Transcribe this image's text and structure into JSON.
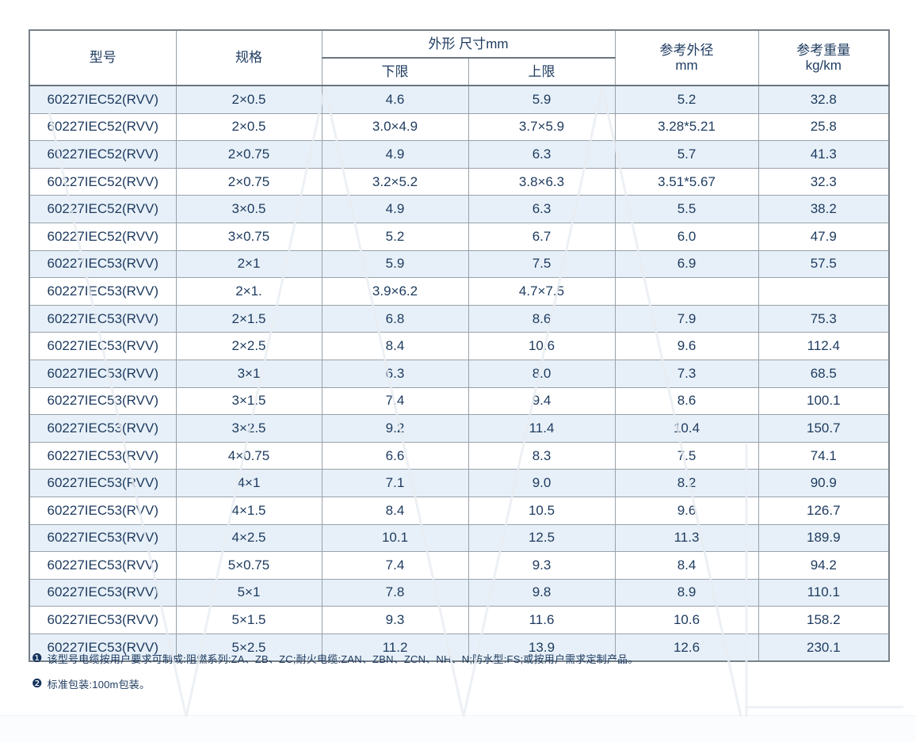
{
  "table": {
    "header": {
      "model": "型号",
      "spec": "规格",
      "dimensions": "外形 尺寸mm",
      "lower": "下限",
      "upper": "上限",
      "ref_od": [
        "参考外径",
        "mm"
      ],
      "ref_weight": [
        "参考重量",
        "kg/km"
      ]
    },
    "rows": [
      [
        "60227IEC52(RVV)",
        "2×0.5",
        "4.6",
        "5.9",
        "5.2",
        "32.8"
      ],
      [
        "60227IEC52(RVV)",
        "2×0.5",
        "3.0×4.9",
        "3.7×5.9",
        "3.28*5.21",
        "25.8"
      ],
      [
        "60227IEC52(RVV)",
        "2×0.75",
        "4.9",
        "6.3",
        "5.7",
        "41.3"
      ],
      [
        "60227IEC52(RVV)",
        "2×0.75",
        "3.2×5.2",
        "3.8×6.3",
        "3.51*5.67",
        "32.3"
      ],
      [
        "60227IEC52(RVV)",
        "3×0.5",
        "4.9",
        "6.3",
        "5.5",
        "38.2"
      ],
      [
        "60227IEC52(RVV)",
        "3×0.75",
        "5.2",
        "6.7",
        "6.0",
        "47.9"
      ],
      [
        "60227IEC53(RVV)",
        "2×1",
        "5.9",
        "7.5",
        "6.9",
        "57.5"
      ],
      [
        "60227IEC53(RVV)",
        "2×1.",
        "3.9×6.2",
        "4.7×7.5",
        "",
        ""
      ],
      [
        "60227IEC53(RVV)",
        "2×1.5",
        "6.8",
        "8.6",
        "7.9",
        "75.3"
      ],
      [
        "60227IEC53(RVV)",
        "2×2.5",
        "8.4",
        "10.6",
        "9.6",
        "112.4"
      ],
      [
        "60227IEC53(RVV)",
        "3×1",
        "6.3",
        "8.0",
        "7.3",
        "68.5"
      ],
      [
        "60227IEC53(RVV)",
        "3×1.5",
        "7.4",
        "9.4",
        "8.6",
        "100.1"
      ],
      [
        "60227IEC53(RVV)",
        "3×2.5",
        "9.2",
        "11.4",
        "10.4",
        "150.7"
      ],
      [
        "60227IEC53(RVV)",
        "4×0.75",
        "6.6",
        "8.3",
        "7.5",
        "74.1"
      ],
      [
        "60227IEC53(RVV)",
        "4×1",
        "7.1",
        "9.0",
        "8.2",
        "90.9"
      ],
      [
        "60227IEC53(RVV)",
        "4×1.5",
        "8.4",
        "10.5",
        "9.6",
        "126.7"
      ],
      [
        "60227IEC53(RVV)",
        "4×2.5",
        "10.1",
        "12.5",
        "11.3",
        "189.9"
      ],
      [
        "60227IEC53(RVV)",
        "5×0.75",
        "7.4",
        "9.3",
        "8.4",
        "94.2"
      ],
      [
        "60227IEC53(RVV)",
        "5×1",
        "7.8",
        "9.8",
        "8.9",
        "110.1"
      ],
      [
        "60227IEC53(RVV)",
        "5×1.5",
        "9.3",
        "11.6",
        "10.6",
        "158.2"
      ],
      [
        "60227IEC53(RVV)",
        "5×2.5",
        "11.2",
        "13.9",
        "12.6",
        "230.1"
      ]
    ]
  },
  "notes": [
    {
      "marker": "❶",
      "text": "该型号电缆按用户要求可制成:阻燃系列:ZA、ZB、ZC;耐火电缆:ZAN、ZBN、ZCN、NH、N;防水型:FS;或按用户需求定制产品。"
    },
    {
      "marker": "❷",
      "text": "标准包装:100m包装。"
    }
  ],
  "colors": {
    "text": "#1d3a5f",
    "row_alt_background": "#e7f0f8",
    "border": "#98a1aa",
    "border_heavy": "#6a7580"
  }
}
